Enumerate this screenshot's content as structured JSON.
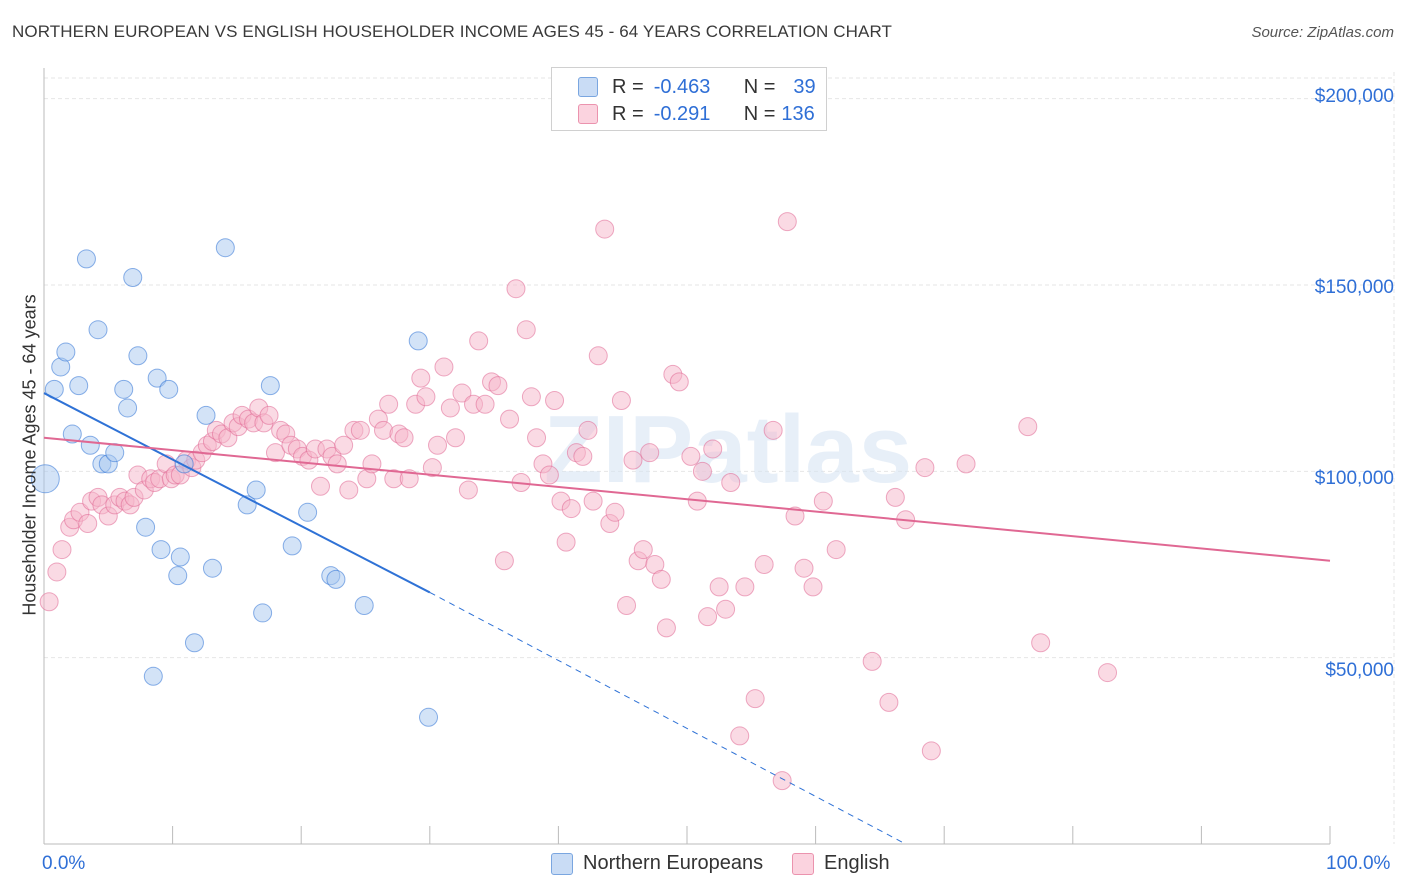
{
  "title": "NORTHERN EUROPEAN VS ENGLISH HOUSEHOLDER INCOME AGES 45 - 64 YEARS CORRELATION CHART",
  "source": "Source: ZipAtlas.com",
  "watermark": "ZIPatlas",
  "legend_top": {
    "rows": [
      {
        "r_label": "R =",
        "r_value": "-0.463",
        "n_label": "N =",
        "n_value": "39",
        "color": "#a8c8f0"
      },
      {
        "r_label": "R =",
        "r_value": "-0.291",
        "n_label": "N =",
        "n_value": "136",
        "color": "#f5b6c9"
      }
    ]
  },
  "colors": {
    "blue_fill": "#a8c8f0",
    "blue_line": "#2f72d6",
    "pink_fill": "#f5b6c9",
    "pink_line": "#e06893",
    "accent_text": "#2f6fd6"
  },
  "chart_data": {
    "type": "scatter",
    "title": "NORTHERN EUROPEAN VS ENGLISH HOUSEHOLDER INCOME AGES 45 - 64 YEARS CORRELATION CHART",
    "xlabel": "",
    "ylabel": "Householder Income Ages 45 - 64 years",
    "xlim": [
      0,
      100
    ],
    "ylim": [
      0,
      205000
    ],
    "x_tick_labels": [
      "0.0%",
      "100.0%"
    ],
    "y_ticks": [
      50000,
      100000,
      150000,
      200000
    ],
    "y_tick_labels": [
      "$50,000",
      "$100,000",
      "$150,000",
      "$200,000"
    ],
    "grid": true,
    "legend_position": "bottom-center",
    "series": [
      {
        "name": "Northern Europeans",
        "color": "#a8c8f0",
        "stroke": "#2f72d6",
        "r": -0.463,
        "n": 39,
        "trend": {
          "x0": 0,
          "y0": 121000,
          "x1": 30,
          "y1": 67500,
          "dash_to_x": 67,
          "dash_to_y": 0
        },
        "points": [
          [
            0.1,
            98000,
            14
          ],
          [
            0.8,
            122000,
            9
          ],
          [
            1.3,
            128000,
            9
          ],
          [
            1.7,
            132000,
            9
          ],
          [
            2.2,
            110000,
            9
          ],
          [
            2.7,
            123000,
            9
          ],
          [
            3.3,
            157000,
            9
          ],
          [
            3.6,
            107000,
            9
          ],
          [
            4.2,
            138000,
            9
          ],
          [
            4.5,
            102000,
            9
          ],
          [
            5.0,
            102000,
            9
          ],
          [
            5.5,
            105000,
            9
          ],
          [
            6.2,
            122000,
            9
          ],
          [
            6.5,
            117000,
            9
          ],
          [
            6.9,
            152000,
            9
          ],
          [
            7.3,
            131000,
            9
          ],
          [
            7.9,
            85000,
            9
          ],
          [
            8.5,
            45000,
            9
          ],
          [
            8.8,
            125000,
            9
          ],
          [
            9.1,
            79000,
            9
          ],
          [
            9.7,
            122000,
            9
          ],
          [
            10.4,
            72000,
            9
          ],
          [
            10.6,
            77000,
            9
          ],
          [
            11.7,
            54000,
            9
          ],
          [
            12.6,
            115000,
            9
          ],
          [
            13.1,
            74000,
            9
          ],
          [
            14.1,
            160000,
            9
          ],
          [
            15.8,
            91000,
            9
          ],
          [
            16.5,
            95000,
            9
          ],
          [
            17.0,
            62000,
            9
          ],
          [
            17.6,
            123000,
            9
          ],
          [
            19.3,
            80000,
            9
          ],
          [
            20.5,
            89000,
            9
          ],
          [
            22.3,
            72000,
            9
          ],
          [
            22.7,
            71000,
            9
          ],
          [
            24.9,
            64000,
            9
          ],
          [
            29.1,
            135000,
            9
          ],
          [
            29.9,
            34000,
            9
          ],
          [
            10.9,
            102000,
            9
          ]
        ]
      },
      {
        "name": "English",
        "color": "#f5b6c9",
        "stroke": "#e06893",
        "r": -0.291,
        "n": 136,
        "trend": {
          "x0": 0,
          "y0": 109000,
          "x1": 100,
          "y1": 76000
        },
        "points": [
          [
            0.4,
            65000
          ],
          [
            1.0,
            73000
          ],
          [
            1.4,
            79000
          ],
          [
            2.0,
            85000
          ],
          [
            2.3,
            87000
          ],
          [
            2.8,
            89000
          ],
          [
            3.4,
            86000
          ],
          [
            3.7,
            92000
          ],
          [
            4.2,
            93000
          ],
          [
            4.5,
            91000
          ],
          [
            5.0,
            88000
          ],
          [
            5.5,
            91000
          ],
          [
            5.9,
            93000
          ],
          [
            6.3,
            92000
          ],
          [
            6.7,
            91000
          ],
          [
            7.0,
            93000
          ],
          [
            7.3,
            99000
          ],
          [
            7.8,
            95000
          ],
          [
            8.3,
            98000
          ],
          [
            8.6,
            97000
          ],
          [
            9.0,
            98000
          ],
          [
            9.5,
            102000
          ],
          [
            9.9,
            98000
          ],
          [
            10.2,
            99000
          ],
          [
            10.6,
            99000
          ],
          [
            11.1,
            103000
          ],
          [
            11.5,
            101000
          ],
          [
            11.8,
            103000
          ],
          [
            12.3,
            105000
          ],
          [
            12.7,
            107000
          ],
          [
            13.1,
            108000
          ],
          [
            13.4,
            111000
          ],
          [
            13.8,
            110000
          ],
          [
            14.3,
            109000
          ],
          [
            14.7,
            113000
          ],
          [
            15.1,
            112000
          ],
          [
            15.4,
            115000
          ],
          [
            15.9,
            114000
          ],
          [
            16.3,
            113000
          ],
          [
            16.7,
            117000
          ],
          [
            17.1,
            113000
          ],
          [
            17.5,
            115000
          ],
          [
            18.0,
            105000
          ],
          [
            18.4,
            111000
          ],
          [
            18.8,
            110000
          ],
          [
            19.2,
            107000
          ],
          [
            19.7,
            106000
          ],
          [
            20.1,
            104000
          ],
          [
            20.6,
            103000
          ],
          [
            21.1,
            106000
          ],
          [
            21.5,
            96000
          ],
          [
            22.0,
            106000
          ],
          [
            22.4,
            104000
          ],
          [
            22.8,
            102000
          ],
          [
            23.3,
            107000
          ],
          [
            23.7,
            95000
          ],
          [
            24.1,
            111000
          ],
          [
            24.6,
            111000
          ],
          [
            25.1,
            98000
          ],
          [
            25.5,
            102000
          ],
          [
            26.0,
            114000
          ],
          [
            26.4,
            111000
          ],
          [
            26.8,
            118000
          ],
          [
            27.2,
            98000
          ],
          [
            27.6,
            110000
          ],
          [
            28.0,
            109000
          ],
          [
            28.4,
            98000
          ],
          [
            28.9,
            118000
          ],
          [
            29.3,
            125000
          ],
          [
            29.7,
            120000
          ],
          [
            30.2,
            101000
          ],
          [
            30.6,
            107000
          ],
          [
            31.1,
            128000
          ],
          [
            31.6,
            117000
          ],
          [
            32.0,
            109000
          ],
          [
            32.5,
            121000
          ],
          [
            33.0,
            95000
          ],
          [
            33.4,
            118000
          ],
          [
            33.8,
            135000
          ],
          [
            34.3,
            118000
          ],
          [
            34.8,
            124000
          ],
          [
            35.3,
            123000
          ],
          [
            35.8,
            76000
          ],
          [
            36.2,
            114000
          ],
          [
            36.7,
            149000
          ],
          [
            37.1,
            97000
          ],
          [
            37.5,
            138000
          ],
          [
            37.9,
            120000
          ],
          [
            38.3,
            109000
          ],
          [
            38.8,
            102000
          ],
          [
            39.3,
            99000
          ],
          [
            39.7,
            119000
          ],
          [
            40.2,
            92000
          ],
          [
            40.6,
            81000
          ],
          [
            41.0,
            90000
          ],
          [
            41.4,
            105000
          ],
          [
            41.9,
            104000
          ],
          [
            42.3,
            111000
          ],
          [
            42.7,
            92000
          ],
          [
            43.1,
            131000
          ],
          [
            43.6,
            165000
          ],
          [
            44.0,
            86000
          ],
          [
            44.4,
            89000
          ],
          [
            44.9,
            119000
          ],
          [
            45.3,
            64000
          ],
          [
            45.8,
            103000
          ],
          [
            46.2,
            76000
          ],
          [
            46.6,
            79000
          ],
          [
            47.1,
            105000
          ],
          [
            47.5,
            75000
          ],
          [
            48.0,
            71000
          ],
          [
            48.4,
            58000
          ],
          [
            48.9,
            126000
          ],
          [
            49.4,
            124000
          ],
          [
            50.3,
            104000
          ],
          [
            50.8,
            92000
          ],
          [
            51.2,
            100000
          ],
          [
            51.6,
            61000
          ],
          [
            52.0,
            106000
          ],
          [
            52.5,
            69000
          ],
          [
            53.0,
            63000
          ],
          [
            53.4,
            97000
          ],
          [
            54.1,
            29000
          ],
          [
            54.5,
            69000
          ],
          [
            55.3,
            39000
          ],
          [
            56.0,
            75000
          ],
          [
            56.7,
            111000
          ],
          [
            57.4,
            17000
          ],
          [
            57.8,
            167000
          ],
          [
            58.4,
            88000
          ],
          [
            59.1,
            74000
          ],
          [
            59.8,
            69000
          ],
          [
            61.6,
            79000
          ],
          [
            64.4,
            49000
          ],
          [
            66.2,
            93000
          ],
          [
            67.0,
            87000
          ],
          [
            68.5,
            101000
          ],
          [
            71.7,
            102000
          ],
          [
            76.5,
            112000
          ],
          [
            77.5,
            54000
          ],
          [
            82.7,
            46000
          ],
          [
            60.6,
            92000
          ],
          [
            65.7,
            38000
          ],
          [
            69.0,
            25000
          ]
        ]
      }
    ]
  }
}
